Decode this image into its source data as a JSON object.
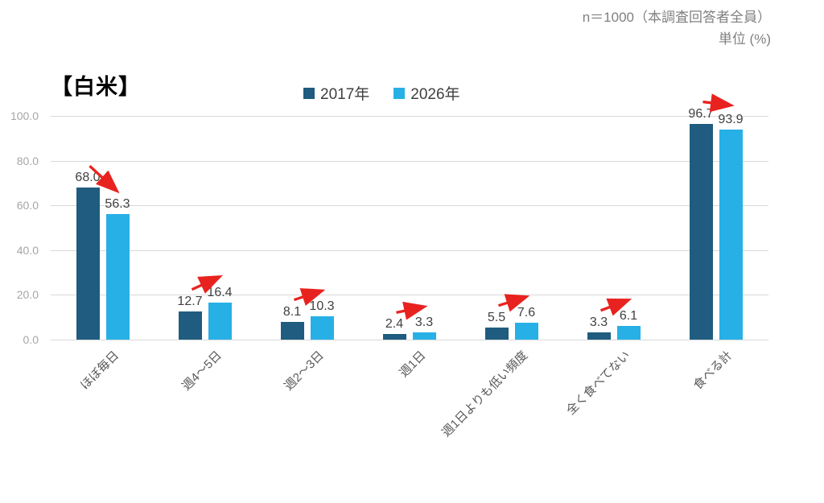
{
  "header": {
    "sample_note": "n＝1000（本調査回答者全員）",
    "unit_note": "単位 (%)"
  },
  "chart_data": {
    "type": "bar",
    "title": "【白米】",
    "categories": [
      "ほぼ毎日",
      "週4～5日",
      "週2～3日",
      "週1日",
      "週1日よりも低い頻度",
      "全く食べてない",
      "食べる計"
    ],
    "series": [
      {
        "name": "2017年",
        "color": "#1f5c7f",
        "values": [
          68.0,
          12.7,
          8.1,
          2.4,
          5.5,
          3.3,
          96.7
        ]
      },
      {
        "name": "2026年",
        "color": "#27b0e6",
        "values": [
          56.3,
          16.4,
          10.3,
          3.3,
          7.6,
          6.1,
          93.9
        ]
      }
    ],
    "value_label_decimals": 1,
    "y_axis": {
      "min": 0,
      "max": 100,
      "step": 20,
      "ticks": [
        "0.0",
        "20.0",
        "40.0",
        "60.0",
        "80.0",
        "100.0"
      ]
    },
    "annotations": {
      "trend_arrows": true,
      "arrow_color": "#e8231f"
    },
    "grid": true,
    "legend_position": "top"
  }
}
